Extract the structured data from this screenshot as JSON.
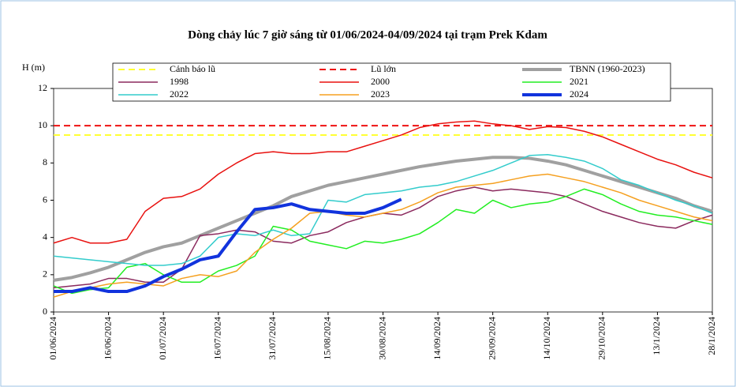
{
  "chart_data": {
    "type": "line",
    "title": "Dòng chảy lúc 7 giờ sáng từ 01/06/2024-04/09/2024 tại trạm Prek Kdam",
    "y_label": "H (m)",
    "x": [
      "01/06/2024",
      null,
      null,
      "16/06/2024",
      null,
      null,
      "01/07/2024",
      null,
      null,
      "16/07/2024",
      null,
      null,
      "31/07/2024",
      null,
      null,
      "15/08/2024",
      null,
      null,
      "30/08/2024",
      null,
      null,
      "14/09/2024",
      null,
      null,
      "29/09/2024",
      null,
      null,
      "14/10/2024",
      null,
      null,
      "29/10/2024",
      null,
      null,
      "13/1/2024",
      null,
      null,
      "28/1/2024"
    ],
    "ylim": [
      0,
      12
    ],
    "yticks": [
      0,
      2,
      4,
      6,
      8,
      10,
      12
    ],
    "series": [
      {
        "name": "Cảnh báo lũ",
        "color": "#ffff33",
        "dash": true,
        "width": 2,
        "values": [
          9.5,
          9.5,
          9.5,
          9.5,
          9.5,
          9.5,
          9.5,
          9.5,
          9.5,
          9.5,
          9.5,
          9.5,
          9.5,
          9.5,
          9.5,
          9.5,
          9.5,
          9.5,
          9.5,
          9.5,
          9.5,
          9.5,
          9.5,
          9.5,
          9.5,
          9.5,
          9.5,
          9.5,
          9.5,
          9.5,
          9.5,
          9.5,
          9.5,
          9.5,
          9.5,
          9.5,
          9.5
        ]
      },
      {
        "name": "Lũ lớn",
        "color": "#ee1111",
        "dash": true,
        "width": 2,
        "values": [
          10,
          10,
          10,
          10,
          10,
          10,
          10,
          10,
          10,
          10,
          10,
          10,
          10,
          10,
          10,
          10,
          10,
          10,
          10,
          10,
          10,
          10,
          10,
          10,
          10,
          10,
          10,
          10,
          10,
          10,
          10,
          10,
          10,
          10,
          10,
          10,
          10
        ]
      },
      {
        "name": "TBNN (1960-2023)",
        "color": "#a0a0a0",
        "width": 4,
        "values": [
          1.7,
          1.85,
          2.1,
          2.4,
          2.8,
          3.2,
          3.5,
          3.7,
          4.1,
          4.5,
          4.9,
          5.3,
          5.7,
          6.2,
          6.5,
          6.8,
          7.0,
          7.2,
          7.4,
          7.6,
          7.8,
          7.95,
          8.1,
          8.2,
          8.3,
          8.3,
          8.25,
          8.1,
          7.9,
          7.6,
          7.3,
          7.0,
          6.7,
          6.4,
          6.1,
          5.7,
          5.4
        ]
      },
      {
        "name": "1998",
        "color": "#8b2a5e",
        "width": 1.5,
        "values": [
          1.3,
          1.4,
          1.5,
          1.8,
          1.8,
          1.6,
          1.6,
          2.3,
          4.1,
          4.2,
          4.4,
          4.3,
          3.8,
          3.7,
          4.1,
          4.3,
          4.8,
          5.1,
          5.3,
          5.2,
          5.6,
          6.2,
          6.5,
          6.7,
          6.5,
          6.6,
          6.5,
          6.4,
          6.2,
          5.8,
          5.4,
          5.1,
          4.8,
          4.6,
          4.5,
          4.9,
          5.2
        ]
      },
      {
        "name": "2000",
        "color": "#e8110f",
        "width": 1.5,
        "values": [
          3.7,
          4.0,
          3.7,
          3.7,
          3.9,
          5.4,
          6.1,
          6.2,
          6.6,
          7.4,
          8.0,
          8.5,
          8.6,
          8.5,
          8.5,
          8.6,
          8.6,
          8.9,
          9.2,
          9.5,
          9.9,
          10.1,
          10.2,
          10.25,
          10.1,
          10.0,
          9.8,
          9.95,
          9.9,
          9.7,
          9.4,
          9.0,
          8.6,
          8.2,
          7.9,
          7.5,
          7.2
        ]
      },
      {
        "name": "2021",
        "color": "#22ee22",
        "width": 1.5,
        "values": [
          1.4,
          1.0,
          1.2,
          1.3,
          2.4,
          2.6,
          2.0,
          1.6,
          1.6,
          2.2,
          2.5,
          3.0,
          4.6,
          4.4,
          3.8,
          3.6,
          3.4,
          3.8,
          3.7,
          3.9,
          4.2,
          4.8,
          5.5,
          5.3,
          6.0,
          5.6,
          5.8,
          5.9,
          6.2,
          6.6,
          6.3,
          5.8,
          5.4,
          5.2,
          5.1,
          4.9,
          4.7
        ]
      },
      {
        "name": "2022",
        "color": "#33cccc",
        "width": 1.5,
        "values": [
          3.0,
          2.9,
          2.8,
          2.7,
          2.6,
          2.5,
          2.5,
          2.6,
          3.0,
          4.0,
          4.2,
          4.1,
          4.4,
          4.1,
          4.2,
          6.0,
          5.9,
          6.3,
          6.4,
          6.5,
          6.7,
          6.8,
          7.0,
          7.3,
          7.6,
          8.0,
          8.4,
          8.45,
          8.3,
          8.1,
          7.7,
          7.1,
          6.8,
          6.4,
          6.0,
          5.7,
          5.3
        ]
      },
      {
        "name": "2023",
        "color": "#f5a020",
        "width": 1.5,
        "values": [
          0.8,
          1.1,
          1.3,
          1.5,
          1.6,
          1.5,
          1.4,
          1.8,
          2.0,
          1.9,
          2.2,
          3.2,
          3.9,
          4.5,
          5.3,
          5.4,
          5.2,
          5.1,
          5.3,
          5.5,
          5.9,
          6.4,
          6.7,
          6.8,
          6.9,
          7.1,
          7.3,
          7.4,
          7.2,
          7.0,
          6.7,
          6.4,
          6.0,
          5.7,
          5.4,
          5.1,
          4.9
        ]
      },
      {
        "name": "2024",
        "color": "#1133dd",
        "width": 4,
        "values": [
          1.1,
          1.1,
          1.3,
          1.1,
          1.1,
          1.4,
          1.9,
          2.3,
          2.8,
          3.0,
          4.3,
          5.5,
          5.6,
          5.8,
          5.5,
          5.4,
          5.3,
          5.3,
          5.6,
          6.05,
          null,
          null,
          null,
          null,
          null,
          null,
          null,
          null,
          null,
          null,
          null,
          null,
          null,
          null,
          null,
          null,
          null
        ]
      }
    ]
  }
}
